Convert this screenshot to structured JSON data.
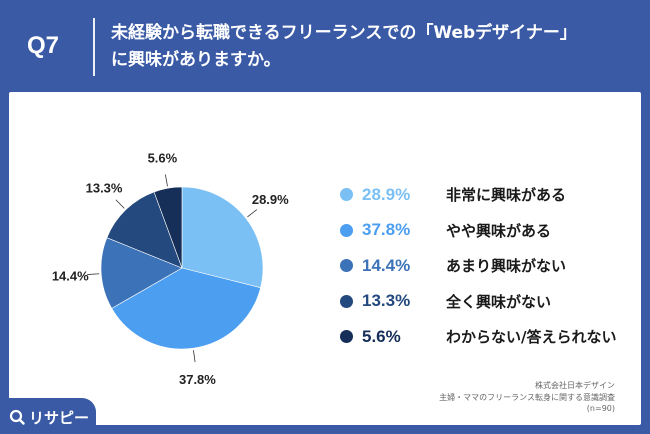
{
  "header": {
    "question": "Q7",
    "title_line1": "未経験から転職できるフリーランスでの「Webデザイナー」",
    "title_line2": "に興味がありますか。"
  },
  "chart_data": {
    "type": "pie",
    "slices": [
      {
        "label": "非常に興味がある",
        "value": 28.9,
        "display": "28.9%",
        "color": "#7ac0f5"
      },
      {
        "label": "やや興味がある",
        "value": 37.8,
        "display": "37.8%",
        "color": "#4b9ef0"
      },
      {
        "label": "あまり興味がない",
        "value": 14.4,
        "display": "14.4%",
        "color": "#3c72b8"
      },
      {
        "label": "全く興味がない",
        "value": 13.3,
        "display": "13.3%",
        "color": "#24497f"
      },
      {
        "label": "わからない/答えられない",
        "value": 5.6,
        "display": "5.6%",
        "color": "#162f58"
      }
    ],
    "legend_position": "right",
    "start_angle": "top",
    "direction": "clockwise"
  },
  "source": {
    "line1": "株式会社日本デザイン",
    "line2": "主婦・ママのフリーランス転身に関する意識調査",
    "line3": "(n=90)"
  },
  "logo": {
    "text": "リサピー",
    "icon": "search-magnifier-icon"
  },
  "colors": {
    "background": "#3a5aa6",
    "panel": "#ffffff"
  }
}
